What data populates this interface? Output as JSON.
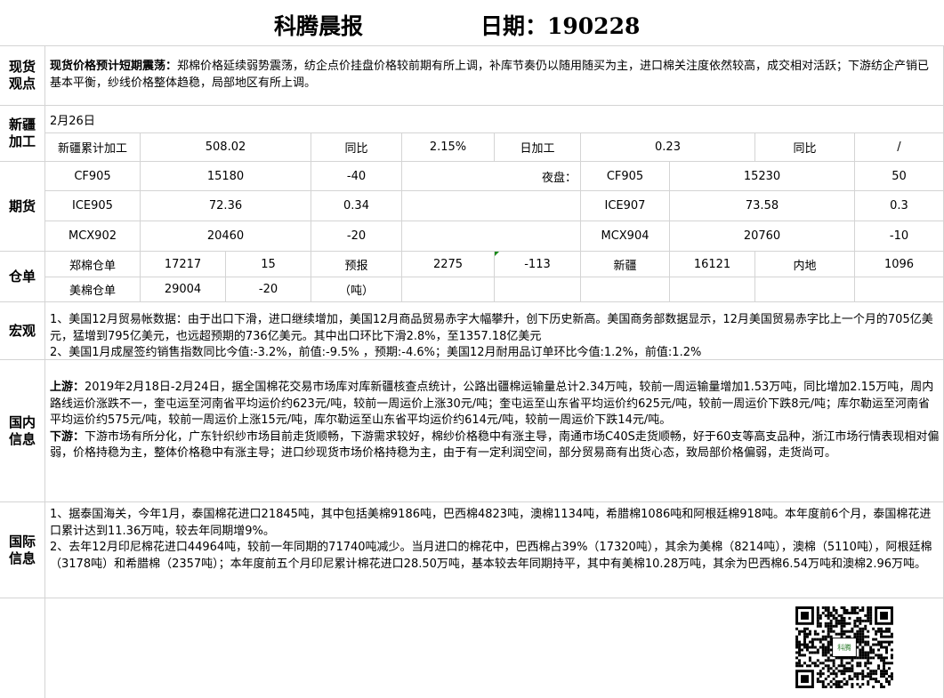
{
  "header": {
    "title": "科腾晨报",
    "date": "日期：190228"
  },
  "spot": {
    "label": "现货观点",
    "lead": "现货价格预计短期震荡：",
    "text": "郑棉价格延续弱势震荡，纺企点价挂盘价格较前期有所上调，补库节奏仍以随用随买为主，进口棉关注度依然较高，成交相对活跃；下游纺企产销已基本平衡，纱线价格整体趋稳，局部地区有所上调。"
  },
  "xinjiang": {
    "label": "新疆加工",
    "date": "2月26日",
    "cum_label": "新疆累计加工",
    "cum_value": "508.02",
    "yoy_label": "同比",
    "yoy_value": "2.15%",
    "daily_label": "日加工",
    "daily_value": "0.23",
    "daily_yoy_label": "同比",
    "daily_yoy_value": "/"
  },
  "futures": {
    "label": "期货",
    "night_label": "夜盘：",
    "rows": [
      {
        "name": "CF905",
        "price": "15180",
        "change": "-40",
        "n_name": "CF905",
        "n_price": "15230",
        "n_change": "50"
      },
      {
        "name": "ICE905",
        "price": "72.36",
        "change": "0.34",
        "n_name": "ICE907",
        "n_price": "73.58",
        "n_change": "0.3"
      },
      {
        "name": "MCX902",
        "price": "20460",
        "change": "-20",
        "n_name": "MCX904",
        "n_price": "20760",
        "n_change": "-10"
      }
    ]
  },
  "warehouse": {
    "label": "仓单",
    "zc_label": "郑棉仓单",
    "zc_value": "17217",
    "zc_change": "15",
    "forecast_label": "预报",
    "forecast_value": "2275",
    "forecast_change": "-113",
    "xj_label": "新疆",
    "xj_value": "16121",
    "inland_label": "内地",
    "inland_value": "1096",
    "us_label": "美棉仓单",
    "us_value": "29004",
    "us_change": "-20",
    "unit": "（吨）"
  },
  "macro": {
    "label": "宏观",
    "p1": "1、美国12月贸易帐数据：由于出口下滑，进口继续增加，美国12月商品贸易赤字大幅攀升，创下历史新高。美国商务部数据显示，12月美国贸易赤字比上一个月的705亿美元，猛增到795亿美元，也远超预期的736亿美元。其中出口环比下滑2.8%，至1357.18亿美元",
    "p2": "2、美国1月成屋签约销售指数同比今值:-3.2%，前值:-9.5% ，预期:-4.6%；美国12月耐用品订单环比今值:1.2%，前值:1.2%"
  },
  "domestic": {
    "label": "国内信息",
    "up_lead": "上游：",
    "up_text": "2019年2月18日-2月24日，据全国棉花交易市场库对库新疆核查点统计，公路出疆棉运输量总计2.34万吨，较前一周运输量增加1.53万吨，同比增加2.15万吨，周内路线运价涨跌不一，奎屯运至河南省平均运价约623元/吨，较前一周运价上涨30元/吨；奎屯运至山东省平均运价约625元/吨，较前一周运价下跌8元/吨；库尔勒运至河南省平均运价约575元/吨，较前一周运价上涨15元/吨，库尔勒运至山东省平均运价约614元/吨，较前一周运价下跌14元/吨。",
    "down_lead": "下游：",
    "down_text": "下游市场有所分化，广东针织纱市场目前走货顺畅，下游需求较好，棉纱价格稳中有涨主导，南通市场C40S走货顺畅，好于60支等高支品种，浙江市场行情表现相对偏弱，价格持稳为主，整体价格稳中有涨主导；进口纱现货市场价格持稳为主，由于有一定利润空间，部分贸易商有出货心态，致局部价格偏弱，走货尚可。"
  },
  "international": {
    "label": "国际信息",
    "p1": "1、据泰国海关，今年1月，泰国棉花进口21845吨，其中包括美棉9186吨，巴西棉4823吨，澳棉1134吨，希腊棉1086吨和阿根廷棉918吨。本年度前6个月，泰国棉花进口累计达到11.36万吨，较去年同期增9%。",
    "p2": "2、去年12月印尼棉花进口44964吨，较前一年同期的71740吨减少。当月进口的棉花中，巴西棉占39%（17320吨），其余为美棉（8214吨），澳棉（5110吨），阿根廷棉（3178吨）和希腊棉（2357吨）；本年度前五个月印尼累计棉花进口28.50万吨，基本较去年同期持平，其中有美棉10.28万吨，其余为巴西棉6.54万吨和澳棉2.96万吨。"
  },
  "qr": {
    "logo_text": "科腾"
  }
}
